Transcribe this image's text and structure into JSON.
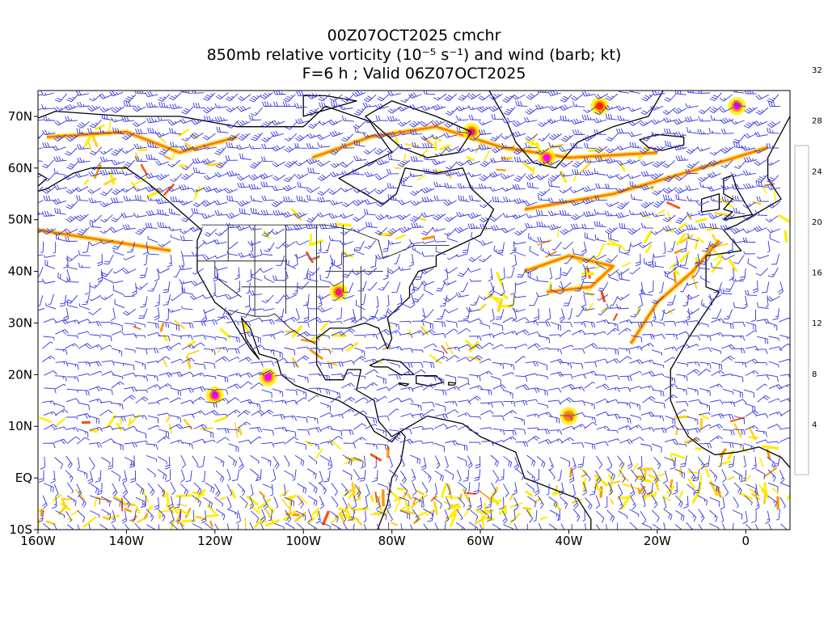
{
  "title": {
    "line1": "00Z07OCT2025 cmchr",
    "line2": "850mb relative vorticity (10⁻⁵ s⁻¹) and wind (barb; kt)",
    "line3": "F=6 h ; Valid 06Z07OCT2025"
  },
  "map": {
    "lon_range": [
      -160,
      10
    ],
    "lat_range": [
      -10,
      75
    ],
    "lon_ticks": [
      {
        "value": -160,
        "label": "160W"
      },
      {
        "value": -140,
        "label": "140W"
      },
      {
        "value": -120,
        "label": "120W"
      },
      {
        "value": -100,
        "label": "100W"
      },
      {
        "value": -80,
        "label": "80W"
      },
      {
        "value": -60,
        "label": "60W"
      },
      {
        "value": -40,
        "label": "40W"
      },
      {
        "value": -20,
        "label": "20W"
      },
      {
        "value": 0,
        "label": "0"
      }
    ],
    "lat_ticks": [
      {
        "value": -10,
        "label": "10S"
      },
      {
        "value": 0,
        "label": "EQ"
      },
      {
        "value": 10,
        "label": "10N"
      },
      {
        "value": 20,
        "label": "20N"
      },
      {
        "value": 30,
        "label": "30N"
      },
      {
        "value": 40,
        "label": "40N"
      },
      {
        "value": 50,
        "label": "50N"
      },
      {
        "value": 60,
        "label": "60N"
      },
      {
        "value": 70,
        "label": "70N"
      }
    ],
    "barb_color": "#3333dd",
    "coast_color": "#000000",
    "vortices": [
      {
        "lon": -120,
        "lat": 16,
        "strength": 36
      },
      {
        "lon": -108,
        "lat": 19.5,
        "strength": 36
      },
      {
        "lon": -92,
        "lat": 36,
        "strength": 28
      },
      {
        "lon": -40,
        "lat": 12,
        "strength": 16
      },
      {
        "lon": -2,
        "lat": 72,
        "strength": 32
      },
      {
        "lon": -45,
        "lat": 62,
        "strength": 32
      },
      {
        "lon": -62,
        "lat": 67,
        "strength": 30
      },
      {
        "lon": -33,
        "lat": 72,
        "strength": 24
      }
    ]
  },
  "colorbar": {
    "labels": [
      "4",
      "8",
      "12",
      "16",
      "20",
      "24",
      "28",
      "32"
    ],
    "colors": [
      "#ffffff",
      "#fff5a0",
      "#ffee00",
      "#ffd21e",
      "#ffb400",
      "#ff9600",
      "#ff7800",
      "#ff5000",
      "#ff1e00",
      "#f0003c",
      "#f01e78",
      "#ff1eb4",
      "#ff00ff"
    ]
  }
}
